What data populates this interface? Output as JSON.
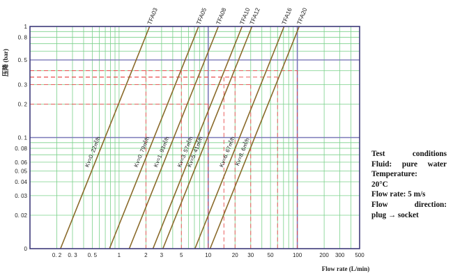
{
  "chart_data": {
    "type": "line",
    "x_scale": "log",
    "y_scale": "log",
    "xlim": [
      0.1,
      500
    ],
    "ylim": [
      0.01,
      1
    ],
    "xlabel": "Flow rate (L/min)",
    "ylabel": "压降 (bar)",
    "x_ticks": [
      {
        "value": 0.2,
        "label": "0. 2"
      },
      {
        "value": 0.3,
        "label": "0. 3"
      },
      {
        "value": 0.5,
        "label": "0. 5"
      },
      {
        "value": 1,
        "label": "1"
      },
      {
        "value": 2,
        "label": "2"
      },
      {
        "value": 3,
        "label": "3"
      },
      {
        "value": 5,
        "label": "5"
      },
      {
        "value": 10,
        "label": "10"
      },
      {
        "value": 20,
        "label": "20"
      },
      {
        "value": 30,
        "label": "30"
      },
      {
        "value": 50,
        "label": "50"
      },
      {
        "value": 100,
        "label": "100"
      },
      {
        "value": 200,
        "label": "200"
      },
      {
        "value": 300,
        "label": "300"
      },
      {
        "value": 500,
        "label": "500"
      }
    ],
    "y_ticks": [
      {
        "value": 1,
        "label": "1"
      },
      {
        "value": 0.8,
        "label": "0. 8"
      },
      {
        "value": 0.5,
        "label": "0. 5"
      },
      {
        "value": 0.3,
        "label": "0. 3"
      },
      {
        "value": 0.2,
        "label": "0. 2"
      },
      {
        "value": 0.1,
        "label": "0. 1"
      },
      {
        "value": 0.08,
        "label": "0. 08"
      },
      {
        "value": 0.06,
        "label": "0. 06"
      },
      {
        "value": 0.05,
        "label": "0. 05"
      },
      {
        "value": 0.04,
        "label": "0. 04"
      },
      {
        "value": 0.03,
        "label": "0. 03"
      },
      {
        "value": 0.02,
        "label": "0. 02"
      },
      {
        "value": 0.01,
        "label": "0"
      }
    ],
    "series": [
      {
        "name": "TFA03",
        "kv_label": "Kv=0. 22㎥/h",
        "points": [
          [
            0.22,
            0.01
          ],
          [
            2.2,
            1
          ]
        ],
        "marker": {
          "flow": 2,
          "pressure": 0.4
        }
      },
      {
        "name": "TFA05",
        "kv_label": "Kv=0. 79㎥/h",
        "points": [
          [
            0.78,
            0.01
          ],
          [
            7.8,
            1
          ]
        ],
        "marker": {
          "flow": 5,
          "pressure": 0.4
        }
      },
      {
        "name": "TFA08",
        "kv_label": "Kv=1. 93㎥/h",
        "points": [
          [
            1.3,
            0.01
          ],
          [
            13,
            1
          ]
        ],
        "marker": {
          "flow": 10,
          "pressure": 0.2
        }
      },
      {
        "name": "TFA10",
        "kv_label": "Kv=3. 57㎥/h",
        "points": [
          [
            2.4,
            0.01
          ],
          [
            24,
            1
          ]
        ],
        "marker": {
          "flow": 15,
          "pressure": 0.35
        }
      },
      {
        "name": "TFA12",
        "kv_label": "Kv=5. 41㎥/h",
        "points": [
          [
            3.1,
            0.01
          ],
          [
            31,
            1
          ]
        ],
        "marker": {
          "flow": 20,
          "pressure": 0.35
        }
      },
      {
        "name": "TFA16",
        "kv_label": "Kv=6. 67㎥/h",
        "points": [
          [
            7.1,
            0.01
          ],
          [
            71,
            1
          ]
        ],
        "marker": {
          "flow": 30,
          "pressure": 0.3
        }
      },
      {
        "name": "TFA20",
        "kv_label": "Kv=8. 6㎥/h",
        "points": [
          [
            10.5,
            0.01
          ],
          [
            105,
            1
          ]
        ],
        "marker": {
          "flow": 60,
          "pressure": 0.35
        }
      }
    ],
    "extra_marker": {
      "flow": 100,
      "pressure": 0.4
    },
    "legend": "none",
    "grid": true,
    "colors": {
      "curve": "#8a6a2a",
      "minor_grid": "#7ad08a",
      "major_grid": "#7a79b8",
      "frame": "#3d3a7a",
      "marker": "#e84a4a"
    }
  },
  "notes": {
    "lines": [
      "Test conditions",
      "Fluid: pure water",
      "Temperature:",
      "20°C",
      "Flow rate: 5 m/s",
      "Flow direction:",
      "plug → socket"
    ]
  }
}
